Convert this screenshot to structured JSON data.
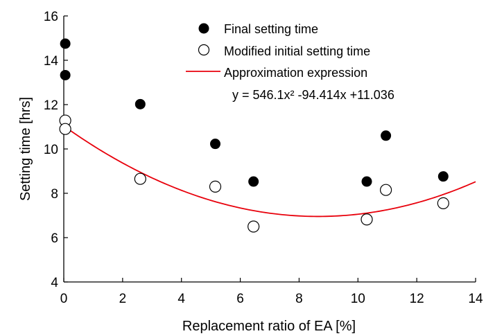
{
  "chart_data": {
    "type": "scatter",
    "xlabel": "Replacement ratio of EA [%]",
    "ylabel": "Setting time [hrs]",
    "xlim": [
      0,
      14
    ],
    "ylim": [
      4,
      16
    ],
    "xticks": [
      "0",
      "2",
      "4",
      "6",
      "8",
      "10",
      "12",
      "14"
    ],
    "yticks": [
      "4",
      "6",
      "8",
      "10",
      "12",
      "14",
      "16"
    ],
    "grid": false,
    "legend_position": "top-right",
    "series": [
      {
        "name": "Final setting time",
        "marker": "filled-circle",
        "color": "#000000",
        "points": [
          {
            "x": 0.05,
            "y": 14.75
          },
          {
            "x": 0.05,
            "y": 13.33
          },
          {
            "x": 2.6,
            "y": 12.02
          },
          {
            "x": 5.15,
            "y": 10.23
          },
          {
            "x": 6.45,
            "y": 8.53
          },
          {
            "x": 10.3,
            "y": 8.53
          },
          {
            "x": 10.95,
            "y": 10.6
          },
          {
            "x": 12.9,
            "y": 8.76
          }
        ]
      },
      {
        "name": "Modified initial setting time",
        "marker": "open-circle",
        "color": "#000000",
        "points": [
          {
            "x": 0.05,
            "y": 11.28
          },
          {
            "x": 0.05,
            "y": 10.9
          },
          {
            "x": 2.6,
            "y": 8.65
          },
          {
            "x": 5.15,
            "y": 8.3
          },
          {
            "x": 6.45,
            "y": 6.5
          },
          {
            "x": 10.3,
            "y": 6.82
          },
          {
            "x": 10.95,
            "y": 8.15
          },
          {
            "x": 12.9,
            "y": 7.55
          }
        ]
      },
      {
        "name": "Approximation expression",
        "type": "line",
        "color": "#e8000b",
        "equation": "y = 546.1x² -94.414x +11.036",
        "coefficients": {
          "a": 546.1,
          "b": -94.414,
          "c": 11.036
        },
        "x_unit_in_equation": "fraction"
      }
    ]
  }
}
